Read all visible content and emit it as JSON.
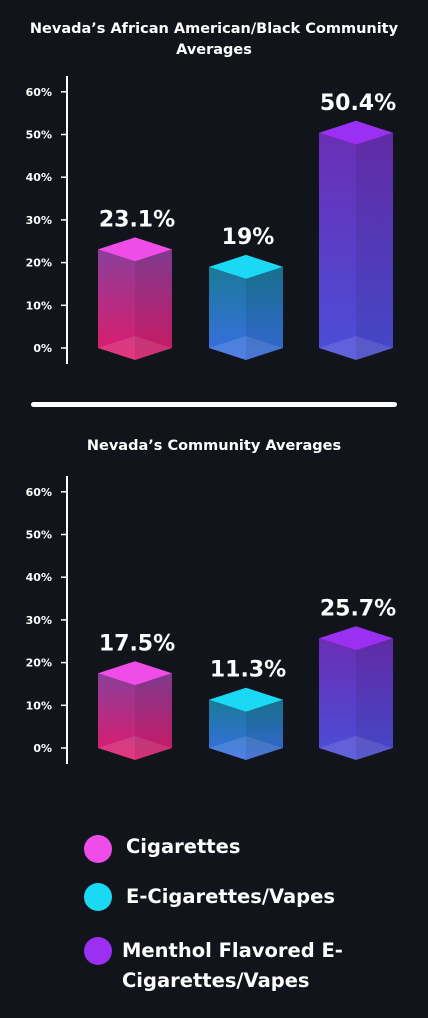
{
  "chart_data": [
    {
      "type": "bar",
      "title": "Nevada’s African American/Black Community Averages",
      "categories": [
        "Cigarettes",
        "E-Cigarettes/Vapes",
        "Menthol Flavored E-Cigarettes/Vapes"
      ],
      "values": [
        23.1,
        19,
        50.4
      ],
      "data_labels": [
        "23.1%",
        "19%",
        "50.4%"
      ],
      "yticks": [
        "0%",
        "10%",
        "20%",
        "30%",
        "40%",
        "50%",
        "60%"
      ],
      "ylim": [
        0,
        60
      ]
    },
    {
      "type": "bar",
      "title": "Nevada’s Community Averages",
      "categories": [
        "Cigarettes",
        "E-Cigarettes/Vapes",
        "Menthol Flavored E-Cigarettes/Vapes"
      ],
      "values": [
        17.5,
        11.3,
        25.7
      ],
      "data_labels": [
        "17.5%",
        "11.3%",
        "25.7%"
      ],
      "yticks": [
        "0%",
        "10%",
        "20%",
        "30%",
        "40%",
        "50%",
        "60%"
      ],
      "ylim": [
        0,
        60
      ]
    }
  ],
  "legend": {
    "items": [
      {
        "label": "Cigarettes",
        "color": "#f04ce8"
      },
      {
        "label": "E-Cigarettes/Vapes",
        "color": "#19d9f5"
      },
      {
        "label": "Menthol Flavored E-Cigarettes/Vapes",
        "color": "#9b30f2"
      }
    ]
  },
  "colors": {
    "background": "#12141c",
    "cigarettes": [
      "#8a3f9a",
      "#e01a6a"
    ],
    "vapes": [
      "#1a7a98",
      "#3a6ee6"
    ],
    "menthol": [
      "#6a2fb4",
      "#4a4ed8"
    ]
  }
}
